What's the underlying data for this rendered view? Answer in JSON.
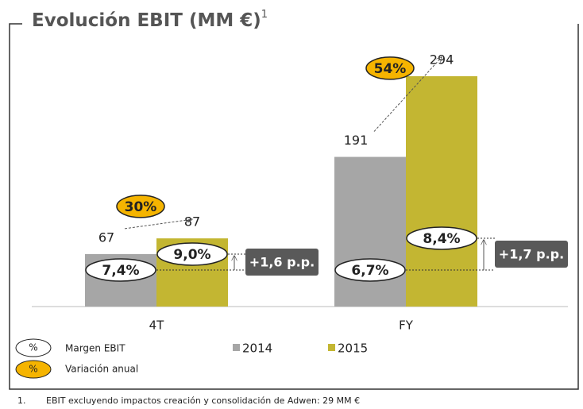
{
  "chart_data": {
    "type": "bar",
    "title": "Evolución EBIT (MM €)",
    "title_note": "1",
    "categories": [
      "4T",
      "FY"
    ],
    "series": [
      {
        "name": "2014",
        "color": "#a6a6a6",
        "values": [
          67,
          191
        ],
        "margins": [
          7.4,
          6.7
        ],
        "margin_labels": [
          "7,4%",
          "6,7%"
        ]
      },
      {
        "name": "2015",
        "color": "#c3b632",
        "values": [
          87,
          294
        ],
        "margins": [
          9.0,
          8.4
        ],
        "margin_labels": [
          "9,0%",
          "8,4%"
        ]
      }
    ],
    "ylim": [
      0,
      300
    ],
    "growth": {
      "values": [
        30,
        54
      ],
      "value_labels": [
        "30%",
        "54%"
      ],
      "color": "#f5b400"
    },
    "margin_change": [
      "+1,6 p.p.",
      "+1,7 p.p."
    ],
    "legend": {
      "symbol": "%",
      "margin": "Margen EBIT",
      "variation": "Variación anual"
    },
    "footnote": {
      "number": "1.",
      "text": "EBIT excluyendo impactos creación y consolidación de Adwen: 29 MM €"
    }
  }
}
